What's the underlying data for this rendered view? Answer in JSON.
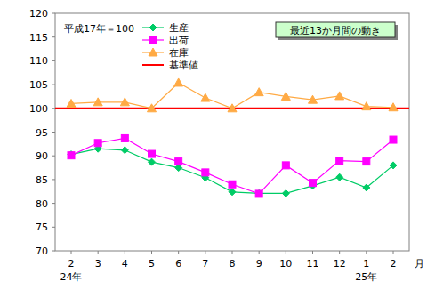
{
  "chart_data": {
    "type": "line",
    "title": "最近13か月間の動き",
    "subtitle": "平成17年＝100",
    "categories": [
      "2",
      "3",
      "4",
      "5",
      "6",
      "7",
      "8",
      "9",
      "10",
      "11",
      "12",
      "1",
      "2"
    ],
    "year_labels": [
      "24年",
      null,
      null,
      null,
      null,
      null,
      null,
      null,
      null,
      null,
      null,
      "25年",
      null
    ],
    "x_unit": "月",
    "series": [
      {
        "name": "生産",
        "color": "#00cc66",
        "marker": "diamond",
        "values": [
          90.3,
          91.5,
          91.2,
          88.7,
          87.5,
          85.4,
          82.4,
          82.1,
          82.1,
          83.7,
          85.5,
          83.3,
          88.0
        ]
      },
      {
        "name": "出荷",
        "color": "#ff00ff",
        "marker": "square",
        "values": [
          90.1,
          92.7,
          93.7,
          90.4,
          88.8,
          86.5,
          84.0,
          82.0,
          88.0,
          84.3,
          89.0,
          88.8,
          93.4
        ]
      },
      {
        "name": "在庫",
        "color": "#ffaa44",
        "marker": "triangle",
        "values": [
          101.0,
          101.3,
          101.3,
          100.0,
          105.4,
          102.2,
          100.0,
          103.4,
          102.5,
          101.8,
          102.6,
          100.4,
          100.2
        ]
      }
    ],
    "reference_lines": [
      {
        "name": "基準値",
        "value": 100,
        "color": "#ff0000"
      }
    ],
    "ylim": [
      70,
      120
    ],
    "yticks": [
      70,
      75,
      80,
      85,
      90,
      95,
      100,
      105,
      110,
      115,
      120
    ],
    "grid": false,
    "legend": "top-left"
  }
}
